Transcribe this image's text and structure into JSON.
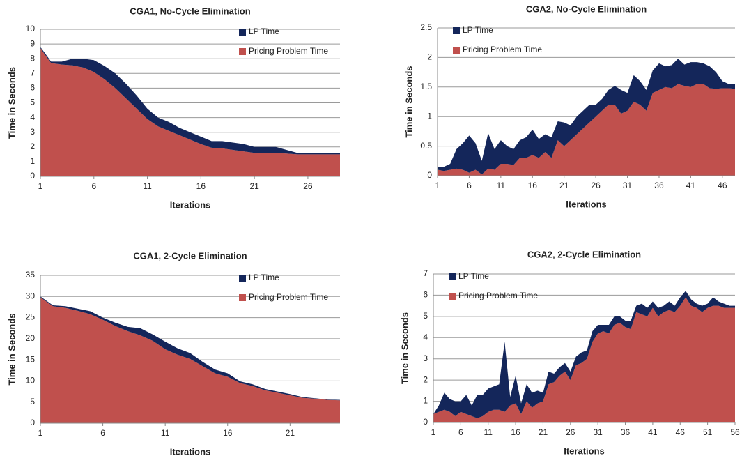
{
  "chart_data": [
    {
      "type": "area",
      "stacked": true,
      "title": "CGA1, No-Cycle Elimination",
      "xlabel": "Iterations",
      "ylabel": "Time in Seconds",
      "x": [
        1,
        2,
        3,
        4,
        5,
        6,
        7,
        8,
        9,
        10,
        11,
        12,
        13,
        14,
        15,
        16,
        17,
        18,
        19,
        20,
        21,
        22,
        23,
        24,
        25,
        26,
        27,
        28,
        29
      ],
      "xlim": [
        1,
        29
      ],
      "xticks": [
        1,
        6,
        11,
        16,
        21,
        26
      ],
      "ylim": [
        0,
        10
      ],
      "yticks": [
        0,
        1,
        2,
        3,
        4,
        5,
        6,
        7,
        8,
        9,
        10
      ],
      "grid": true,
      "legend": "top-right",
      "series": [
        {
          "name": "LP Time",
          "color": "#14265a",
          "values": [
            0.1,
            0.1,
            0.2,
            0.45,
            0.6,
            0.8,
            0.9,
            1.0,
            1.0,
            0.9,
            0.7,
            0.6,
            0.6,
            0.5,
            0.5,
            0.5,
            0.45,
            0.5,
            0.5,
            0.5,
            0.4,
            0.4,
            0.4,
            0.25,
            0.1,
            0.1,
            0.1,
            0.1,
            0.1
          ]
        },
        {
          "name": "Pricing Problem Time",
          "color": "#c0504d",
          "values": [
            8.7,
            7.7,
            7.6,
            7.55,
            7.4,
            7.1,
            6.6,
            6.0,
            5.3,
            4.6,
            3.9,
            3.4,
            3.1,
            2.8,
            2.5,
            2.2,
            1.95,
            1.9,
            1.8,
            1.7,
            1.6,
            1.6,
            1.6,
            1.55,
            1.5,
            1.5,
            1.5,
            1.5,
            1.5
          ]
        }
      ]
    },
    {
      "type": "area",
      "stacked": true,
      "title": "CGA2, No-Cycle Elimination",
      "xlabel": "Iterations",
      "ylabel": "Time in Seconds",
      "x": [
        1,
        2,
        3,
        4,
        5,
        6,
        7,
        8,
        9,
        10,
        11,
        12,
        13,
        14,
        15,
        16,
        17,
        18,
        19,
        20,
        21,
        22,
        23,
        24,
        25,
        26,
        27,
        28,
        29,
        30,
        31,
        32,
        33,
        34,
        35,
        36,
        37,
        38,
        39,
        40,
        41,
        42,
        43,
        44,
        45,
        46,
        47,
        48
      ],
      "xlim": [
        1,
        48
      ],
      "xticks": [
        1,
        6,
        11,
        16,
        21,
        26,
        31,
        36,
        41,
        46
      ],
      "ylim": [
        0,
        2.5
      ],
      "yticks": [
        0,
        0.5,
        1,
        1.5,
        2,
        2.5
      ],
      "grid": true,
      "legend": "top-left",
      "series": [
        {
          "name": "LP Time",
          "color": "#14265a",
          "values": [
            0.05,
            0.07,
            0.1,
            0.33,
            0.45,
            0.63,
            0.45,
            0.23,
            0.6,
            0.35,
            0.4,
            0.3,
            0.27,
            0.3,
            0.35,
            0.43,
            0.32,
            0.3,
            0.35,
            0.32,
            0.4,
            0.25,
            0.3,
            0.3,
            0.3,
            0.2,
            0.2,
            0.25,
            0.32,
            0.4,
            0.3,
            0.45,
            0.4,
            0.35,
            0.38,
            0.45,
            0.35,
            0.39,
            0.43,
            0.36,
            0.42,
            0.37,
            0.35,
            0.37,
            0.28,
            0.12,
            0.07,
            0.08
          ]
        },
        {
          "name": "Pricing Problem Time",
          "color": "#c0504d",
          "values": [
            0.1,
            0.08,
            0.1,
            0.12,
            0.1,
            0.05,
            0.1,
            0.02,
            0.12,
            0.1,
            0.2,
            0.2,
            0.18,
            0.3,
            0.3,
            0.35,
            0.3,
            0.4,
            0.3,
            0.6,
            0.5,
            0.6,
            0.7,
            0.8,
            0.9,
            1.0,
            1.1,
            1.2,
            1.2,
            1.05,
            1.1,
            1.25,
            1.2,
            1.1,
            1.4,
            1.45,
            1.5,
            1.48,
            1.55,
            1.52,
            1.5,
            1.55,
            1.55,
            1.48,
            1.47,
            1.48,
            1.48,
            1.47
          ]
        }
      ]
    },
    {
      "type": "area",
      "stacked": true,
      "title": "CGA1, 2-Cycle Elimination",
      "xlabel": "Iterations",
      "ylabel": "Time in Seconds",
      "x": [
        1,
        2,
        3,
        4,
        5,
        6,
        7,
        8,
        9,
        10,
        11,
        12,
        13,
        14,
        15,
        16,
        17,
        18,
        19,
        20,
        21,
        22,
        23,
        24,
        25
      ],
      "xlim": [
        1,
        25
      ],
      "xticks": [
        1,
        6,
        11,
        16,
        21
      ],
      "ylim": [
        0,
        35
      ],
      "yticks": [
        0,
        5,
        10,
        15,
        20,
        25,
        30,
        35
      ],
      "grid": true,
      "legend": "top-right",
      "series": [
        {
          "name": "LP Time",
          "color": "#14265a",
          "values": [
            0.2,
            0.2,
            0.4,
            0.5,
            0.7,
            0.5,
            0.8,
            1.0,
            1.7,
            1.5,
            1.8,
            1.5,
            1.4,
            1.0,
            0.9,
            0.8,
            0.4,
            0.4,
            0.3,
            0.3,
            0.3,
            0.2,
            0.1,
            0.1,
            0.1
          ]
        },
        {
          "name": "Pricing Problem Time",
          "color": "#c0504d",
          "values": [
            29.8,
            27.7,
            27.3,
            26.6,
            25.8,
            24.5,
            23.0,
            21.8,
            20.8,
            19.5,
            17.5,
            16.2,
            15.2,
            13.5,
            11.8,
            11.0,
            9.5,
            8.8,
            7.8,
            7.2,
            6.6,
            6.0,
            5.8,
            5.5,
            5.4
          ]
        }
      ]
    },
    {
      "type": "area",
      "stacked": true,
      "title": "CGA2, 2-Cycle Elimination",
      "xlabel": "Iterations",
      "ylabel": "Time in Seconds",
      "x": [
        1,
        2,
        3,
        4,
        5,
        6,
        7,
        8,
        9,
        10,
        11,
        12,
        13,
        14,
        15,
        16,
        17,
        18,
        19,
        20,
        21,
        22,
        23,
        24,
        25,
        26,
        27,
        28,
        29,
        30,
        31,
        32,
        33,
        34,
        35,
        36,
        37,
        38,
        39,
        40,
        41,
        42,
        43,
        44,
        45,
        46,
        47,
        48,
        49,
        50,
        51,
        52,
        53,
        54,
        55,
        56
      ],
      "xlim": [
        1,
        56
      ],
      "xticks": [
        1,
        6,
        11,
        16,
        21,
        26,
        31,
        36,
        41,
        46,
        51,
        56
      ],
      "ylim": [
        0,
        7
      ],
      "yticks": [
        0,
        1,
        2,
        3,
        4,
        5,
        6,
        7
      ],
      "grid": true,
      "legend": "top-left",
      "series": [
        {
          "name": "LP Time",
          "color": "#14265a",
          "values": [
            0,
            0.3,
            0.8,
            0.6,
            0.7,
            0.5,
            0.9,
            0.5,
            1.1,
            1.0,
            1.1,
            1.1,
            1.2,
            3.3,
            0.4,
            1.3,
            0.5,
            0.8,
            0.7,
            0.6,
            0.4,
            0.6,
            0.4,
            0.4,
            0.4,
            0.4,
            0.4,
            0.5,
            0.4,
            0.5,
            0.4,
            0.3,
            0.4,
            0.4,
            0.3,
            0.3,
            0.4,
            0.3,
            0.5,
            0.4,
            0.3,
            0.4,
            0.3,
            0.4,
            0.3,
            0.4,
            0.3,
            0.3,
            0.2,
            0.3,
            0.2,
            0.4,
            0.2,
            0.2,
            0.1,
            0.1
          ]
        },
        {
          "name": "Pricing Problem Time",
          "color": "#c0504d",
          "values": [
            0.4,
            0.5,
            0.6,
            0.5,
            0.3,
            0.5,
            0.4,
            0.3,
            0.2,
            0.3,
            0.5,
            0.6,
            0.6,
            0.5,
            0.8,
            0.9,
            0.4,
            1.0,
            0.7,
            0.9,
            1.0,
            1.8,
            1.9,
            2.2,
            2.4,
            2.0,
            2.7,
            2.8,
            3.0,
            3.8,
            4.2,
            4.3,
            4.2,
            4.6,
            4.7,
            4.5,
            4.4,
            5.2,
            5.1,
            5.0,
            5.4,
            5.0,
            5.2,
            5.3,
            5.2,
            5.5,
            5.9,
            5.5,
            5.4,
            5.2,
            5.4,
            5.5,
            5.5,
            5.4,
            5.4,
            5.4
          ]
        }
      ]
    }
  ]
}
